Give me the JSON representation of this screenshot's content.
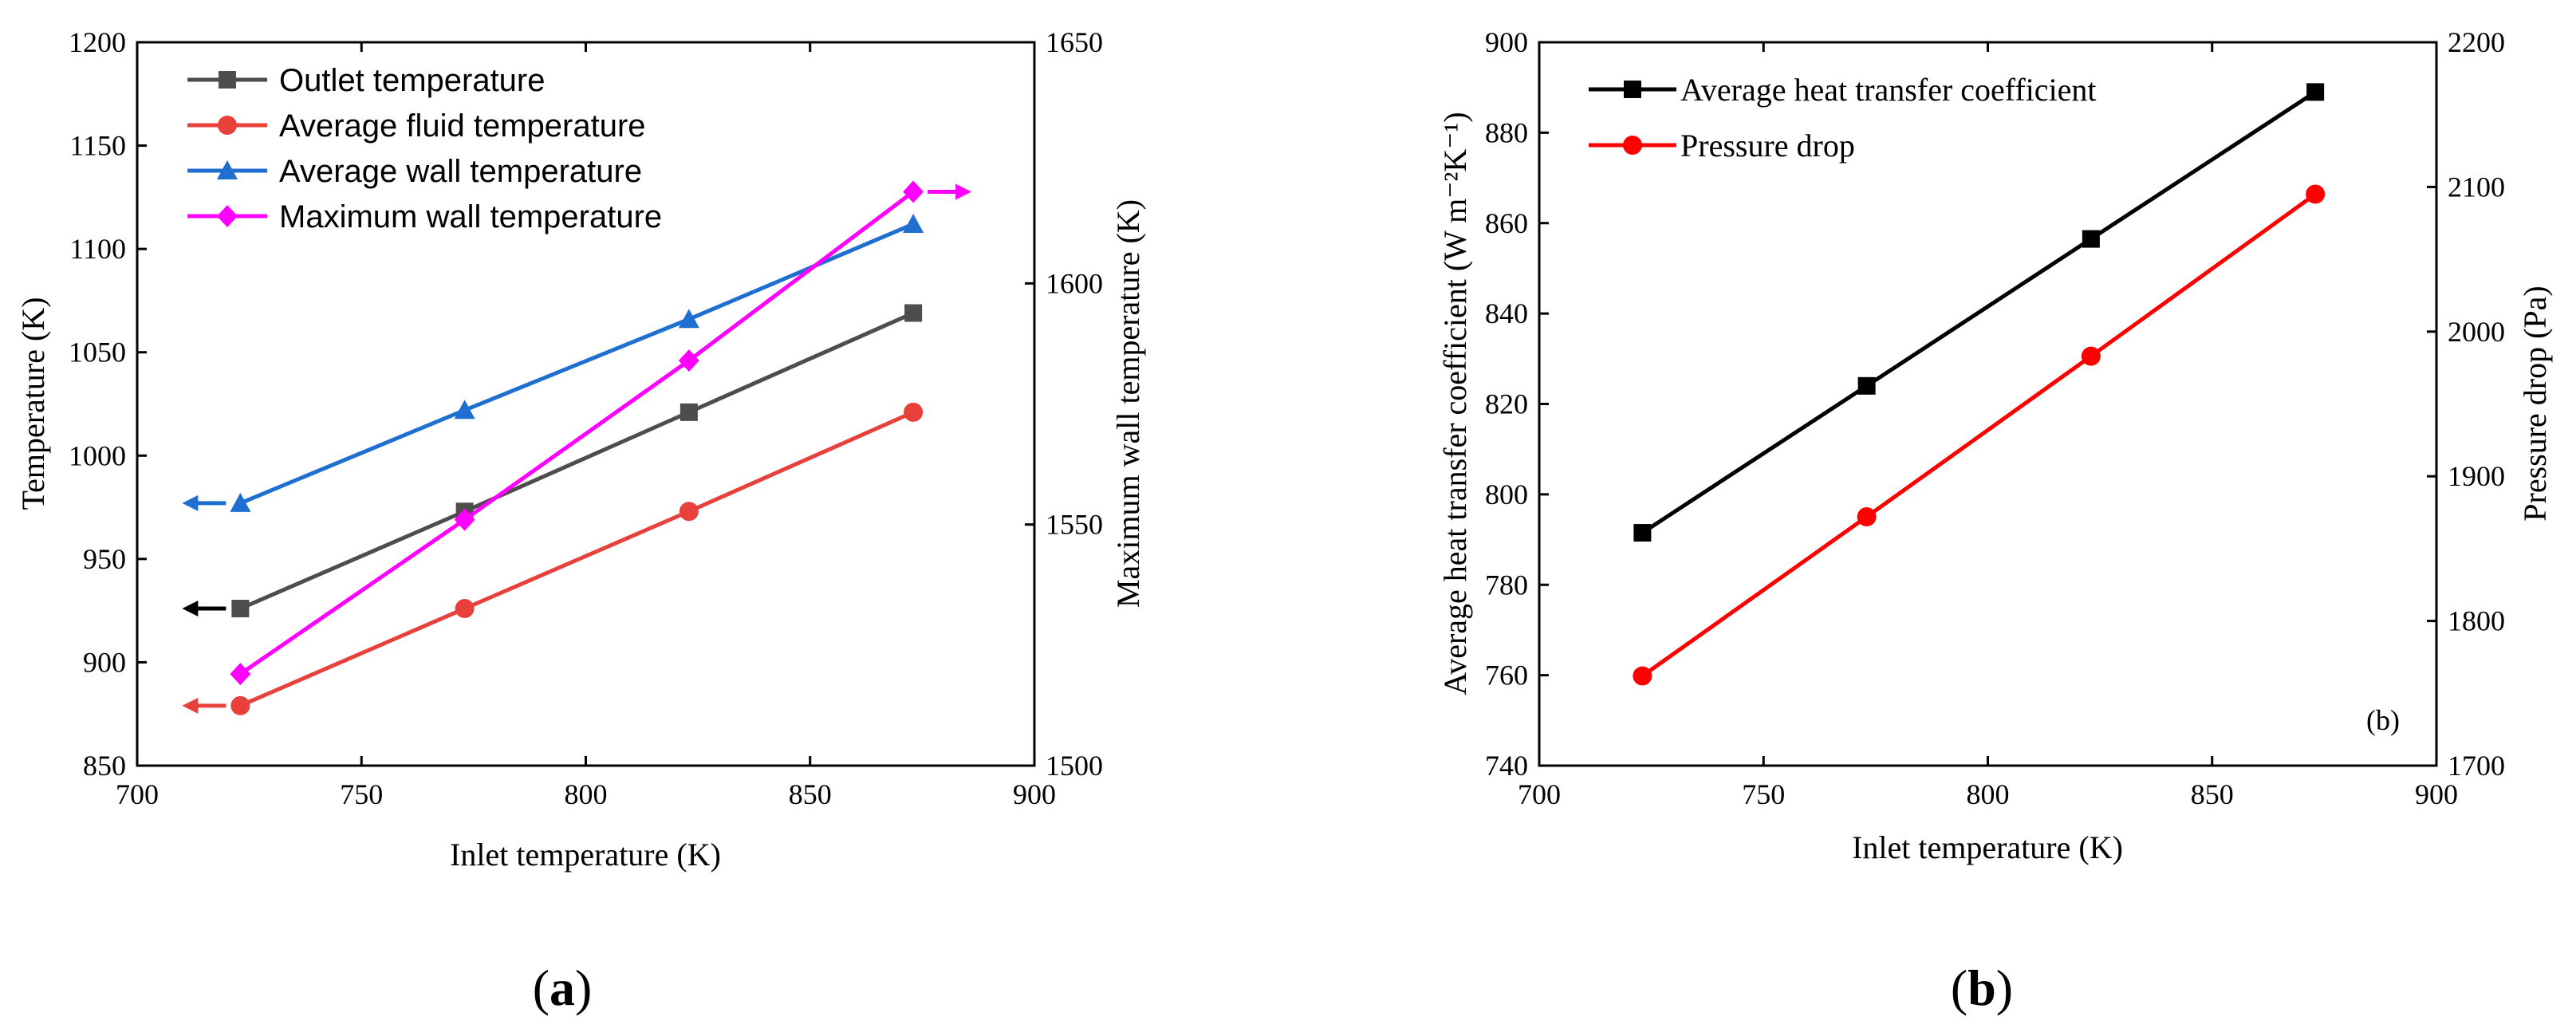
{
  "chart_data": [
    {
      "type": "line",
      "panel_label_open": "(",
      "panel_label": "a",
      "panel_label_close": ")",
      "xlabel": "Inlet temperature (K)",
      "ylabel": "Temperature (K)",
      "ylabel_right": "Maximum wall temperature (K)",
      "xlim": [
        700,
        900
      ],
      "ylim": [
        850,
        1200
      ],
      "ylim_right": [
        1500,
        1650
      ],
      "x_ticks": [
        "700",
        "750",
        "800",
        "850",
        "900"
      ],
      "y_ticks": [
        "850",
        "900",
        "950",
        "1000",
        "1050",
        "1100",
        "1150",
        "1200"
      ],
      "y_ticks_right": [
        "1500",
        "1550",
        "1600",
        "1650"
      ],
      "legend_position": "top-left",
      "series": [
        {
          "name": "Outlet temperature",
          "color": "#4d4d4d",
          "marker": "square",
          "axis": "left",
          "x": [
            723,
            773,
            823,
            873
          ],
          "values": [
            926,
            973,
            1021,
            1069
          ],
          "arrow": "left"
        },
        {
          "name": "Average fluid temperature",
          "color": "#e8413c",
          "marker": "circle",
          "axis": "left",
          "x": [
            723,
            773,
            823,
            873
          ],
          "values": [
            879,
            926,
            973,
            1021
          ],
          "arrow": "left"
        },
        {
          "name": "Average wall temperature",
          "color": "#1f6fd1",
          "marker": "triangle",
          "axis": "left",
          "x": [
            723,
            773,
            823,
            873
          ],
          "values": [
            977,
            1022,
            1066,
            1112
          ],
          "arrow": "left"
        },
        {
          "name": "Maximum wall temperature",
          "color": "#ff00ff",
          "marker": "diamond",
          "axis": "right",
          "x": [
            723,
            773,
            823,
            873
          ],
          "values": [
            1519,
            1551,
            1584,
            1619
          ],
          "arrow": "right"
        }
      ]
    },
    {
      "type": "line",
      "panel_label_open": "(",
      "panel_label": "b",
      "panel_label_close": ")",
      "inner_label": "(b)",
      "xlabel": "Inlet temperature (K)",
      "ylabel": "Average heat transfer coefficient (W m⁻²K⁻¹)",
      "ylabel_right": "Pressure drop (Pa)",
      "xlim": [
        700,
        900
      ],
      "ylim": [
        740,
        900
      ],
      "ylim_right": [
        1700,
        2200
      ],
      "x_ticks": [
        "700",
        "750",
        "800",
        "850",
        "900"
      ],
      "y_ticks": [
        "740",
        "760",
        "780",
        "800",
        "820",
        "840",
        "860",
        "880",
        "900"
      ],
      "y_ticks_right": [
        "1700",
        "1800",
        "1900",
        "2000",
        "2100",
        "2200"
      ],
      "legend_position": "top-left",
      "series": [
        {
          "name": "Average heat transfer coefficient",
          "color": "#000000",
          "marker": "square",
          "axis": "left",
          "x": [
            723,
            773,
            823,
            873
          ],
          "values": [
            791.5,
            824,
            856.5,
            889
          ]
        },
        {
          "name": "Pressure drop",
          "color": "#ff0000",
          "marker": "circle",
          "axis": "right",
          "x": [
            723,
            773,
            823,
            873
          ],
          "values": [
            1762,
            1872,
            1983,
            2095
          ]
        }
      ]
    }
  ]
}
